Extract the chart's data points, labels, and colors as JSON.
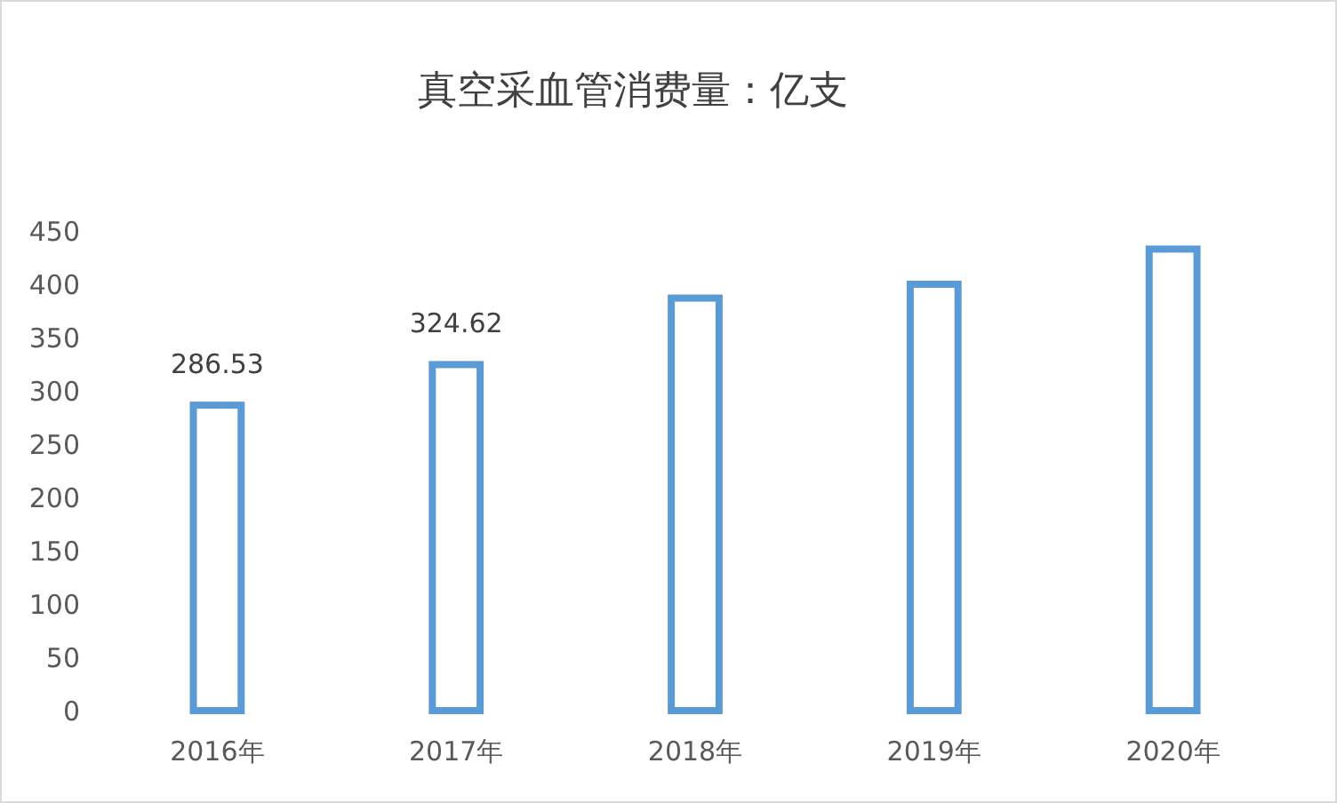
{
  "chart_data": {
    "type": "bar",
    "title": "真空采血管消费量：亿支",
    "categories": [
      "2016年",
      "2017年",
      "2018年",
      "2019年",
      "2020年"
    ],
    "values": [
      286.53,
      324.62,
      387,
      400,
      433
    ],
    "value_labels": [
      "286.53",
      "324.62",
      null,
      null,
      null
    ],
    "color": "#5b9bd5",
    "ylim": [
      0,
      450
    ],
    "yticks": [
      0,
      50,
      100,
      150,
      200,
      250,
      300,
      350,
      400,
      450
    ],
    "grid": false
  }
}
